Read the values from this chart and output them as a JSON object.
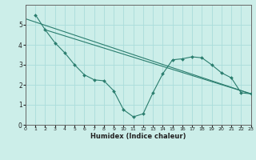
{
  "background_color": "#cceee9",
  "grid_color": "#aaddda",
  "line_color": "#2a7d6e",
  "xlabel": "Humidex (Indice chaleur)",
  "ylim": [
    0,
    6
  ],
  "xlim": [
    0,
    23
  ],
  "yticks": [
    0,
    1,
    2,
    3,
    4,
    5
  ],
  "xticks": [
    0,
    1,
    2,
    3,
    4,
    5,
    6,
    7,
    8,
    9,
    10,
    11,
    12,
    13,
    14,
    15,
    16,
    17,
    18,
    19,
    20,
    21,
    22,
    23
  ],
  "main_x": [
    1,
    2,
    3,
    4,
    5,
    6,
    7,
    8,
    9,
    10,
    11,
    12,
    13,
    14,
    15,
    16,
    17,
    18,
    19,
    20,
    21,
    22,
    23
  ],
  "main_y": [
    5.5,
    4.75,
    4.1,
    3.6,
    3.0,
    2.5,
    2.25,
    2.2,
    1.7,
    0.75,
    0.4,
    0.55,
    1.6,
    2.55,
    3.25,
    3.3,
    3.4,
    3.35,
    3.0,
    2.6,
    2.35,
    1.6,
    1.55
  ],
  "trend1_x": [
    0,
    23
  ],
  "trend1_y": [
    5.3,
    1.55
  ],
  "trend2_x": [
    2,
    23
  ],
  "trend2_y": [
    4.75,
    1.55
  ]
}
